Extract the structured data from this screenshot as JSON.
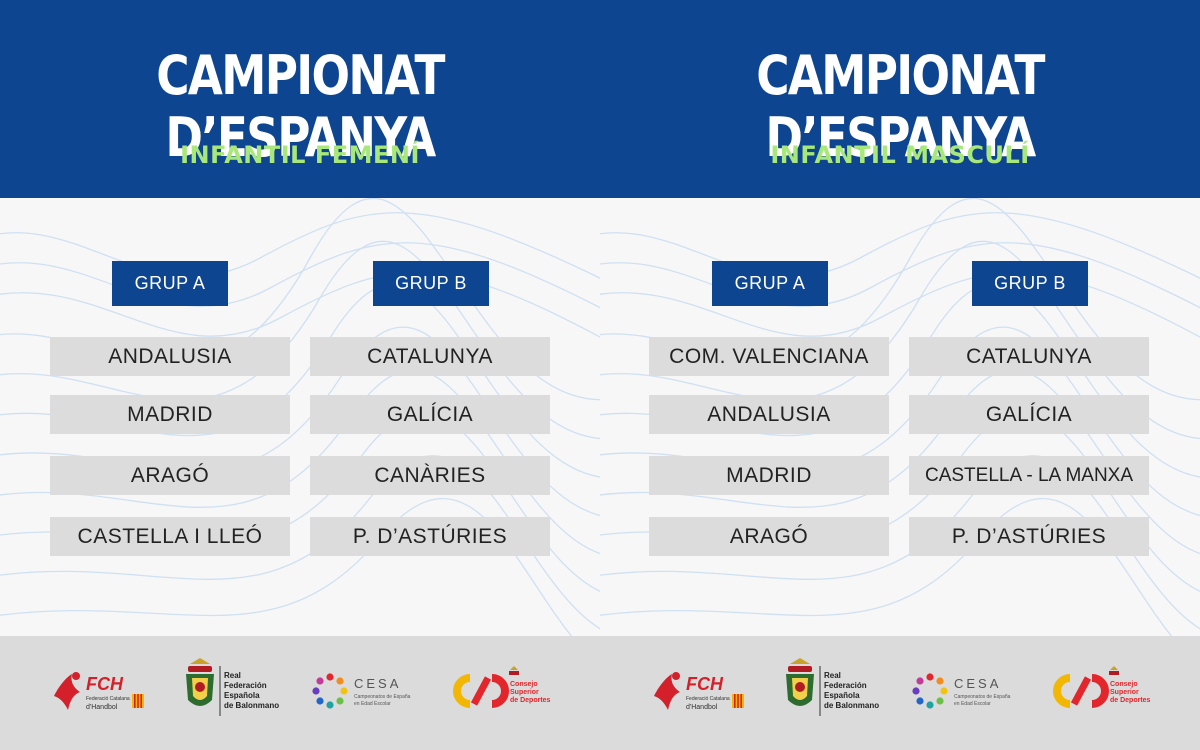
{
  "panels": [
    {
      "title": "CAMPIONAT D’ESPANYA",
      "subtitle": "INFANTIL FEMENÍ",
      "groups": [
        {
          "label": "GRUP A",
          "teams": [
            "ANDALUSIA",
            "MADRID",
            "ARAGÓ",
            "CASTELLA I LLEÓ"
          ]
        },
        {
          "label": "GRUP B",
          "teams": [
            "CATALUNYA",
            "GALÍCIA",
            "CANÀRIES",
            "P. D’ASTÚRIES"
          ]
        }
      ]
    },
    {
      "title": "CAMPIONAT D’ESPANYA",
      "subtitle": "INFANTIL MASCULÍ",
      "groups": [
        {
          "label": "GRUP A",
          "teams": [
            "COM. VALENCIANA",
            "ANDALUSIA",
            "MADRID",
            "ARAGÓ"
          ]
        },
        {
          "label": "GRUP B",
          "teams": [
            "CATALUNYA",
            "GALÍCIA",
            "CASTELLA - LA MANXA",
            "P. D’ASTÚRIES"
          ]
        }
      ]
    }
  ],
  "footer": {
    "fch": {
      "abbr": "FCH",
      "line1": "Federació Catalana",
      "line2": "d'Handbol"
    },
    "rfebm": {
      "line1": "Real",
      "line2": "Federación",
      "line3": "Española",
      "line4": "de Balonmano"
    },
    "cesa": {
      "abbr": "CESA",
      "line1": "Campeonatos de España",
      "line2": "en Edad Escolar"
    },
    "csd": {
      "line1": "Consejo",
      "line2": "Superior",
      "line3": "de Deportes"
    }
  },
  "colors": {
    "header_bg": "#0e4590",
    "subtitle": "#a8e87a",
    "team_bg": "#dcdcdc",
    "footer_bg": "#dbdbdb",
    "fch_red": "#d4202a",
    "csd_yellow": "#f2b705",
    "csd_red": "#e3262b"
  },
  "icons": [
    "wave-pattern",
    "fch-logo",
    "rfebm-crest-logo",
    "cesa-ring-logo",
    "csd-logo"
  ]
}
